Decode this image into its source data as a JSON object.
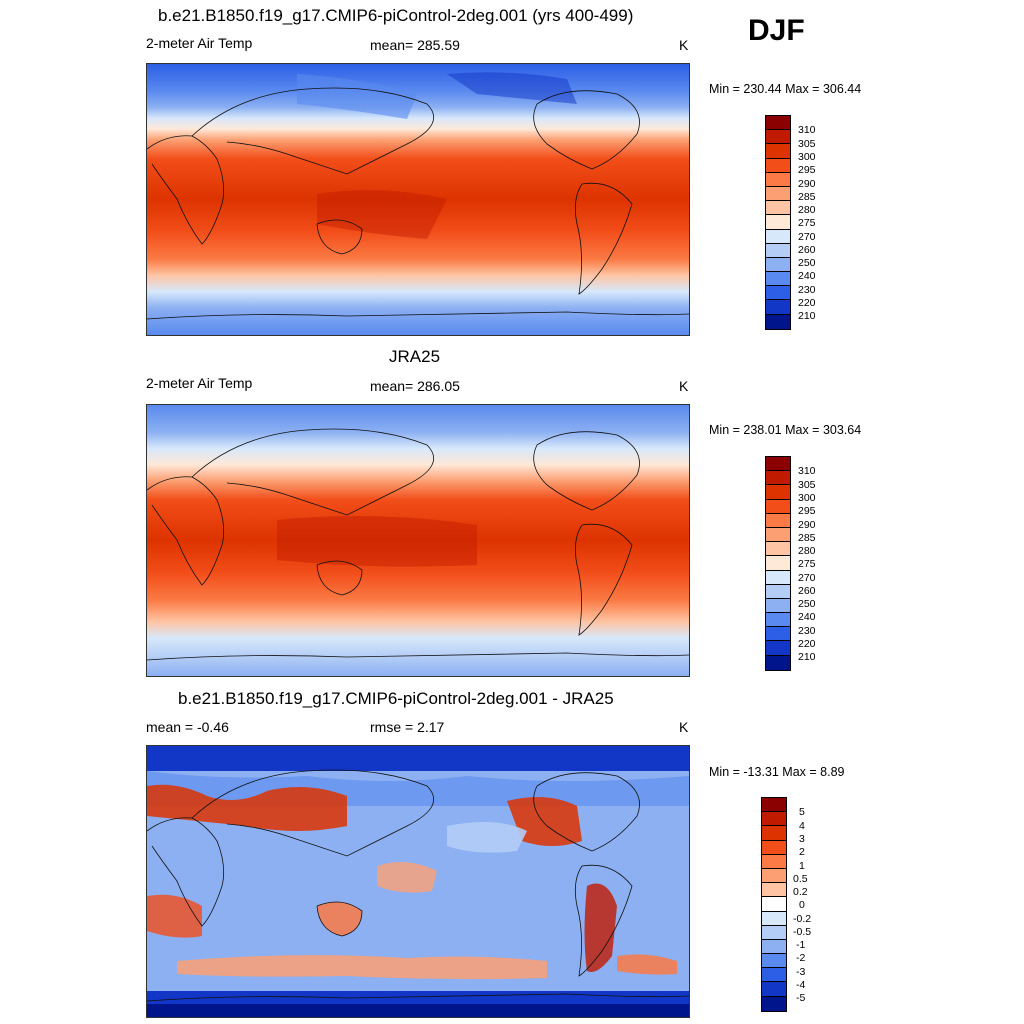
{
  "season": "DJF",
  "panels": [
    {
      "title": "b.e21.B1850.f19_g17.CMIP6-piControl-2deg.001 (yrs 400-499)",
      "left_label": "2-meter Air Temp",
      "center_label": "mean= 285.59",
      "units": "K",
      "minmax": "Min = 230.44 Max = 306.44",
      "colorbar_labels": [
        "310",
        "305",
        "300",
        "295",
        "290",
        "285",
        "280",
        "275",
        "270",
        "260",
        "250",
        "240",
        "230",
        "220",
        "210"
      ]
    },
    {
      "title": "JRA25",
      "left_label": "2-meter Air Temp",
      "center_label": "mean= 286.05",
      "units": "K",
      "minmax": "Min = 238.01 Max = 303.64",
      "colorbar_labels": [
        "310",
        "305",
        "300",
        "295",
        "290",
        "285",
        "280",
        "275",
        "270",
        "260",
        "250",
        "240",
        "230",
        "220",
        "210"
      ]
    },
    {
      "title": "b.e21.B1850.f19_g17.CMIP6-piControl-2deg.001 - JRA25",
      "left_label": "mean =  -0.46",
      "center_label": "rmse =   2.17",
      "units": "K",
      "minmax": "Min = -13.31 Max =   8.89",
      "colorbar_labels": [
        "5",
        "4",
        "3",
        "2",
        "1",
        "0.5",
        "0.2",
        "0",
        "-0.2",
        "-0.5",
        "-1",
        "-2",
        "-3",
        "-4",
        "-5"
      ]
    }
  ],
  "colors": {
    "temp_scale": [
      "#8b0000",
      "#c01a00",
      "#dd3300",
      "#f24e1a",
      "#fb7a45",
      "#fca073",
      "#fec4a3",
      "#fee8d8",
      "#d7e8fb",
      "#b3cdf6",
      "#8cb0f2",
      "#5a8aef",
      "#2d5fe6",
      "#1236c6",
      "#00148c"
    ],
    "diff_scale": [
      "#8b0000",
      "#c01a00",
      "#dd3300",
      "#f24e1a",
      "#fb7a45",
      "#fca073",
      "#fec4a3",
      "#ffffff",
      "#d7e8fb",
      "#b3cdf6",
      "#8cb0f2",
      "#5a8aef",
      "#2d5fe6",
      "#1236c6",
      "#00148c"
    ]
  }
}
